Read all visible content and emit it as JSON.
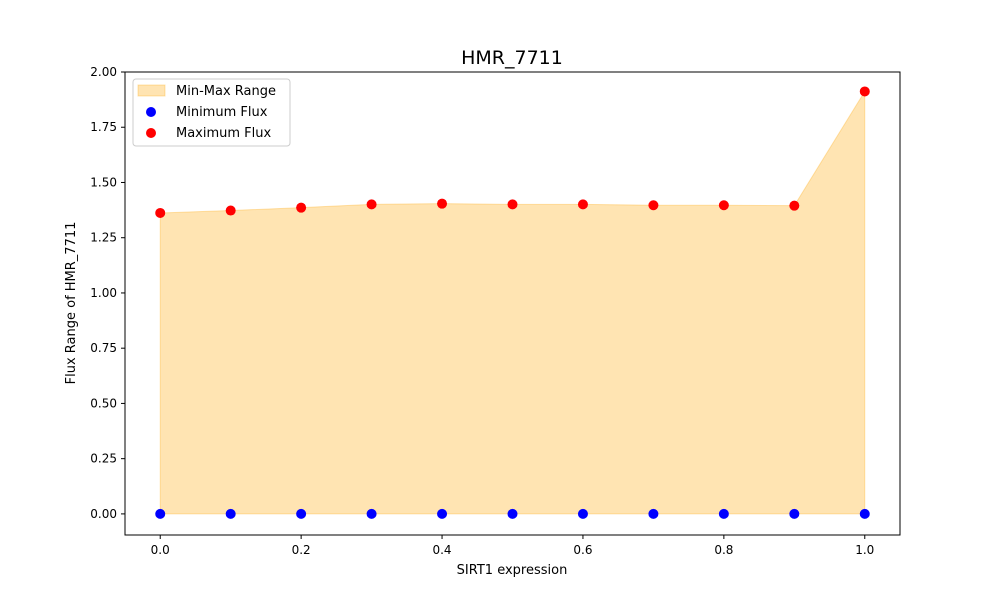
{
  "chart_data": {
    "type": "area",
    "title": "HMR_7711",
    "xlabel": "SIRT1 expression",
    "ylabel": "Flux Range of HMR_7711",
    "xlim": [
      -0.05,
      1.05
    ],
    "ylim": [
      -0.0955,
      2.0
    ],
    "x_ticks": [
      "0.0",
      "0.2",
      "0.4",
      "0.6",
      "0.8",
      "1.0"
    ],
    "y_ticks": [
      "0.00",
      "0.25",
      "0.50",
      "0.75",
      "1.00",
      "1.25",
      "1.50",
      "1.75",
      "2.00"
    ],
    "x": [
      0.0,
      0.1,
      0.2,
      0.3,
      0.4,
      0.5,
      0.6,
      0.7,
      0.8,
      0.9,
      1.0
    ],
    "series": [
      {
        "name": "Min-Max Range",
        "kind": "fill_between",
        "color": "#ffa500",
        "alpha": 0.3
      },
      {
        "name": "Minimum Flux",
        "kind": "scatter",
        "color": "#0000ff",
        "values": [
          0,
          0,
          0,
          0,
          0,
          0,
          0,
          0,
          0,
          0,
          0
        ]
      },
      {
        "name": "Maximum Flux",
        "kind": "scatter",
        "color": "#ff0000",
        "values": [
          1.362,
          1.373,
          1.386,
          1.401,
          1.404,
          1.401,
          1.401,
          1.397,
          1.397,
          1.395,
          1.912
        ]
      }
    ],
    "legend": {
      "position": "top-left",
      "entries": [
        "Min-Max Range",
        "Minimum Flux",
        "Maximum Flux"
      ]
    },
    "grid": false
  }
}
